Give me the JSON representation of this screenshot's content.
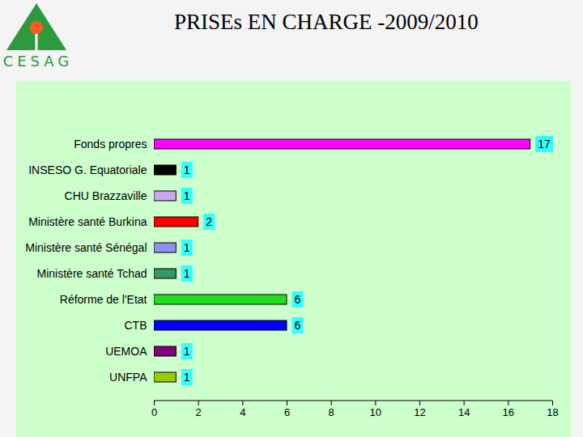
{
  "logo_text": "CESAG",
  "chart_data": {
    "type": "bar",
    "title": "PRISEs EN CHARGE -2009/2010",
    "orientation": "horizontal",
    "categories": [
      "Fonds propres",
      "INSESO G. Equatoriale",
      "CHU Brazzaville",
      "Ministère santé Burkina",
      "Ministère santé Sénégal",
      "Ministère santé Tchad",
      "Réforme de l'Etat",
      "CTB",
      "UEMOA",
      "UNFPA"
    ],
    "values": [
      17,
      1,
      1,
      2,
      1,
      1,
      6,
      6,
      1,
      1
    ],
    "colors": [
      "#ff00ff",
      "#000000",
      "#c8a8f0",
      "#ff0000",
      "#9090f0",
      "#339966",
      "#22dd22",
      "#0000ff",
      "#800080",
      "#99cc00"
    ],
    "xlim": [
      0,
      18
    ],
    "xticks": [
      0,
      2,
      4,
      6,
      8,
      10,
      12,
      14,
      16,
      18
    ],
    "data_labels": true,
    "grid": false
  }
}
